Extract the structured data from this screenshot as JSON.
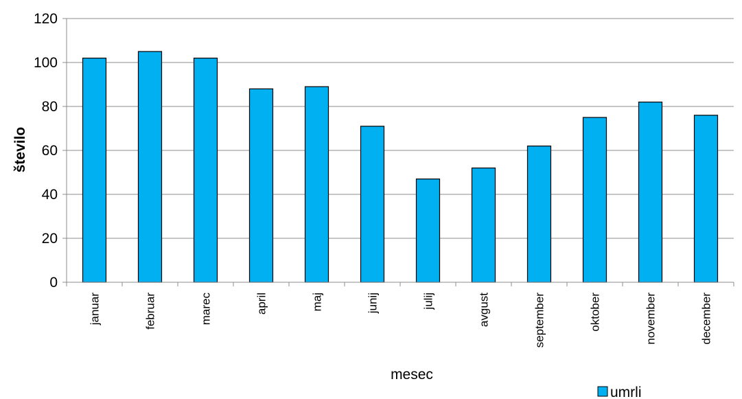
{
  "chart_data": {
    "type": "bar",
    "categories": [
      "januar",
      "februar",
      "marec",
      "april",
      "maj",
      "junij",
      "julij",
      "avgust",
      "september",
      "oktober",
      "november",
      "december"
    ],
    "series": [
      {
        "name": "umrli",
        "color": "#00b0f0",
        "values": [
          102,
          105,
          102,
          88,
          89,
          71,
          47,
          52,
          62,
          75,
          82,
          76
        ]
      }
    ],
    "xlabel": "mesec",
    "ylabel": "število",
    "ylim": [
      0,
      120
    ],
    "yticks": [
      "0",
      "20",
      "40",
      "60",
      "80",
      "100",
      "120"
    ],
    "grid": true,
    "legend_position": "bottom-right"
  }
}
